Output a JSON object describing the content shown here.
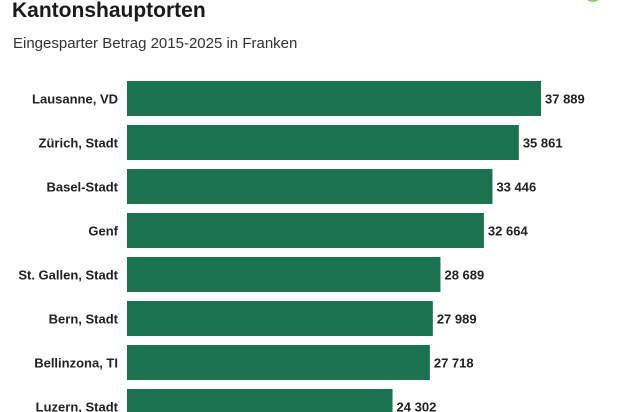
{
  "header": {
    "title": "Kantonshauptorten",
    "subtitle": "Eingesparter Betrag 2015-2025 in Franken"
  },
  "colors": {
    "bar": "#1b7150",
    "accent": "#8bd36a"
  },
  "chart_data": {
    "type": "bar",
    "orientation": "horizontal",
    "title": "Kantonshauptorten",
    "subtitle": "Eingesparter Betrag 2015-2025 in Franken",
    "categories": [
      "Lausanne, VD",
      "Zürich, Stadt",
      "Basel-Stadt",
      "Genf",
      "St. Gallen, Stadt",
      "Bern, Stadt",
      "Bellinzona, TI",
      "Luzern, Stadt"
    ],
    "values": [
      37889,
      35861,
      33446,
      32664,
      28689,
      27989,
      27718,
      24302
    ],
    "value_labels": [
      "37 889",
      "35 861",
      "33 446",
      "32 664",
      "28 689",
      "27 989",
      "27 718",
      "24 302"
    ],
    "xlim": [
      0,
      37889
    ],
    "grid": false,
    "legend": "none"
  }
}
